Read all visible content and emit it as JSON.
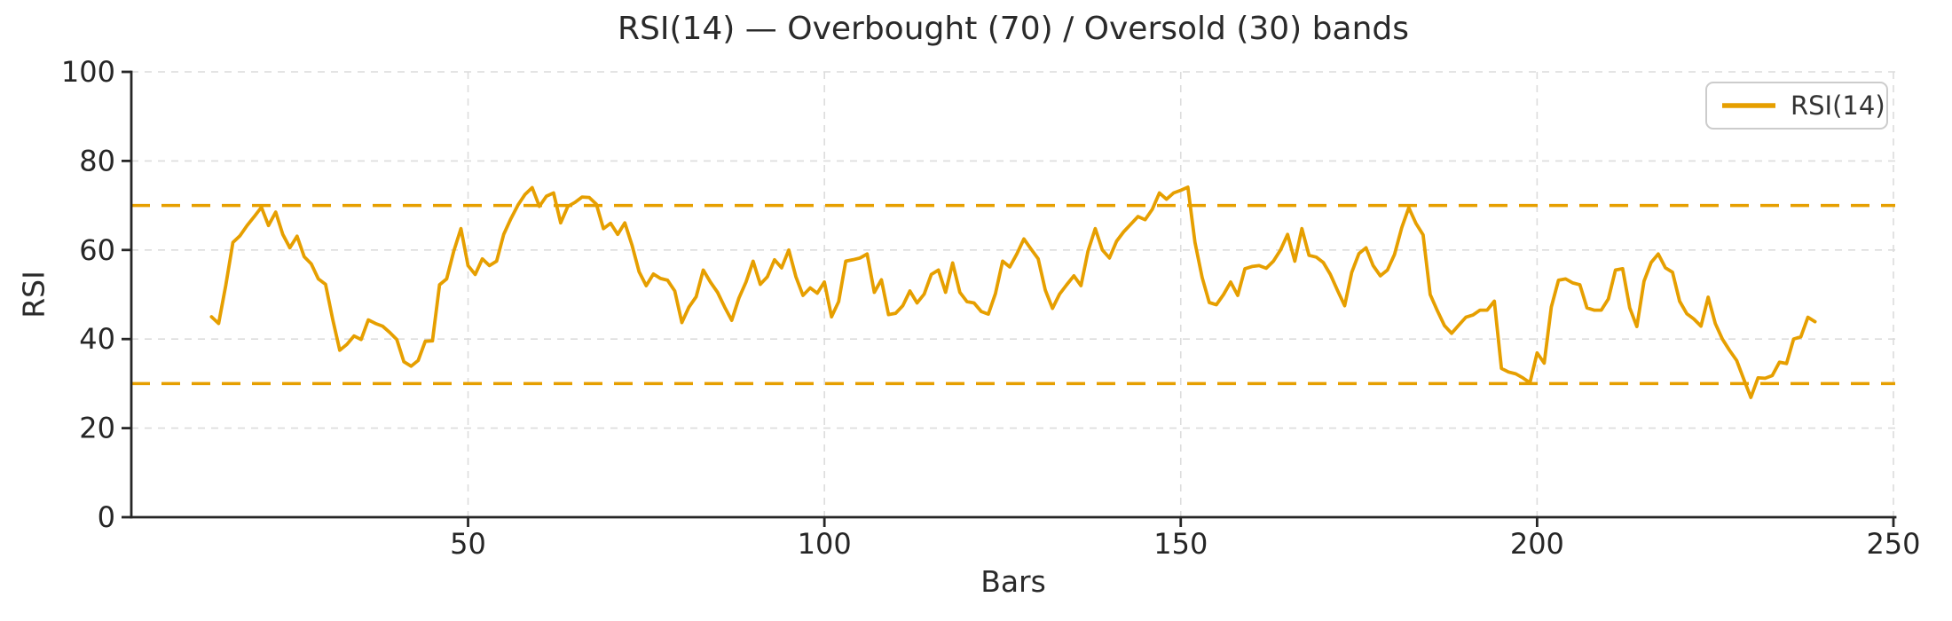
{
  "title": "RSI(14) — Overbought (70) / Oversold (30) bands",
  "legend": {
    "label": "RSI(14)",
    "position": "upper right"
  },
  "axes": {
    "xlabel": "Bars",
    "ylabel": "RSI",
    "x_ticks": [
      50,
      100,
      150,
      200,
      250
    ],
    "y_ticks": [
      0,
      20,
      40,
      60,
      80,
      100
    ]
  },
  "colors": {
    "line": "#E69F00",
    "band": "#E69F00",
    "grid": "#DCDCDC",
    "axis": "#262626",
    "text": "#2A2A2A",
    "legend_border": "#CCCCCC",
    "background": "#FFFFFF"
  },
  "chart_data": {
    "type": "line",
    "title": "RSI(14) — Overbought (70) / Oversold (30) bands",
    "xlabel": "Bars",
    "ylabel": "RSI",
    "xlim": [
      2.75,
      250.25
    ],
    "ylim": [
      0,
      100
    ],
    "grid": true,
    "grid_style": "dashed",
    "legend_position": "upper right",
    "band_lines": [
      {
        "name": "Overbought",
        "value": 70,
        "style": "dashed"
      },
      {
        "name": "Oversold",
        "value": 30,
        "style": "dashed"
      }
    ],
    "series": [
      {
        "name": "RSI(14)",
        "x_start": 14,
        "x_step": 1,
        "values": [
          45.0,
          43.5,
          52.0,
          61.7,
          63.2,
          65.5,
          67.5,
          69.6,
          65.5,
          68.5,
          63.5,
          60.5,
          63.1,
          58.5,
          56.9,
          53.5,
          52.3,
          44.5,
          37.5,
          38.8,
          40.7,
          39.9,
          44.3,
          43.5,
          42.9,
          41.5,
          39.9,
          34.9,
          33.9,
          35.2,
          39.5,
          39.6,
          52.2,
          53.5,
          59.8,
          64.8,
          56.5,
          54.5,
          58.0,
          56.5,
          57.5,
          63.5,
          67.0,
          70.1,
          72.5,
          74.0,
          69.8,
          72.1,
          72.8,
          66.1,
          69.8,
          70.7,
          71.9,
          71.8,
          70.3,
          64.8,
          66.0,
          63.5,
          66.1,
          61.1,
          55.1,
          52.0,
          54.6,
          53.6,
          53.2,
          50.8,
          43.7,
          47.2,
          49.5,
          55.5,
          52.8,
          50.5,
          47.2,
          44.2,
          49.2,
          52.8,
          57.5,
          52.3,
          54.0,
          57.8,
          56.0,
          60.0,
          54.0,
          49.8,
          51.5,
          50.3,
          52.8,
          45.0,
          48.4,
          57.5,
          57.8,
          58.2,
          59.1,
          50.5,
          53.3,
          45.5,
          45.8,
          47.5,
          50.8,
          48.1,
          50.1,
          54.5,
          55.5,
          50.5,
          57.1,
          50.5,
          48.4,
          48.1,
          46.2,
          45.6,
          50.2,
          57.5,
          56.2,
          59.1,
          62.5,
          60.2,
          58.0,
          51.0,
          46.9,
          50.1,
          52.2,
          54.2,
          52.0,
          59.8,
          64.8,
          60.0,
          58.2,
          62.0,
          64.1,
          65.8,
          67.5,
          66.8,
          69.1,
          72.8,
          71.4,
          72.8,
          73.4,
          74.1,
          61.7,
          53.8,
          48.2,
          47.7,
          50.0,
          52.8,
          49.8,
          55.8,
          56.3,
          56.5,
          55.9,
          57.5,
          60.0,
          63.5,
          57.5,
          64.8,
          58.8,
          58.4,
          57.2,
          54.5,
          50.9,
          47.5,
          55.0,
          59.2,
          60.5,
          56.5,
          54.2,
          55.5,
          59.0,
          65.0,
          69.5,
          66.0,
          63.4,
          50.0,
          46.4,
          43.0,
          41.3,
          43.1,
          44.9,
          45.4,
          46.5,
          46.5,
          48.5,
          33.4,
          32.6,
          32.2,
          31.3,
          30.2,
          36.9,
          34.6,
          47.2,
          53.2,
          53.5,
          52.6,
          52.2,
          47.0,
          46.5,
          46.5,
          49.0,
          55.5,
          55.8,
          47.0,
          42.8,
          53.0,
          57.2,
          59.1,
          56.0,
          55.0,
          48.5,
          45.7,
          44.5,
          42.9,
          49.4,
          43.5,
          40.0,
          37.5,
          35.2,
          31.0,
          26.9,
          31.3,
          31.2,
          31.8,
          34.8,
          34.5,
          40.0,
          40.5,
          44.9,
          43.9
        ]
      }
    ]
  }
}
